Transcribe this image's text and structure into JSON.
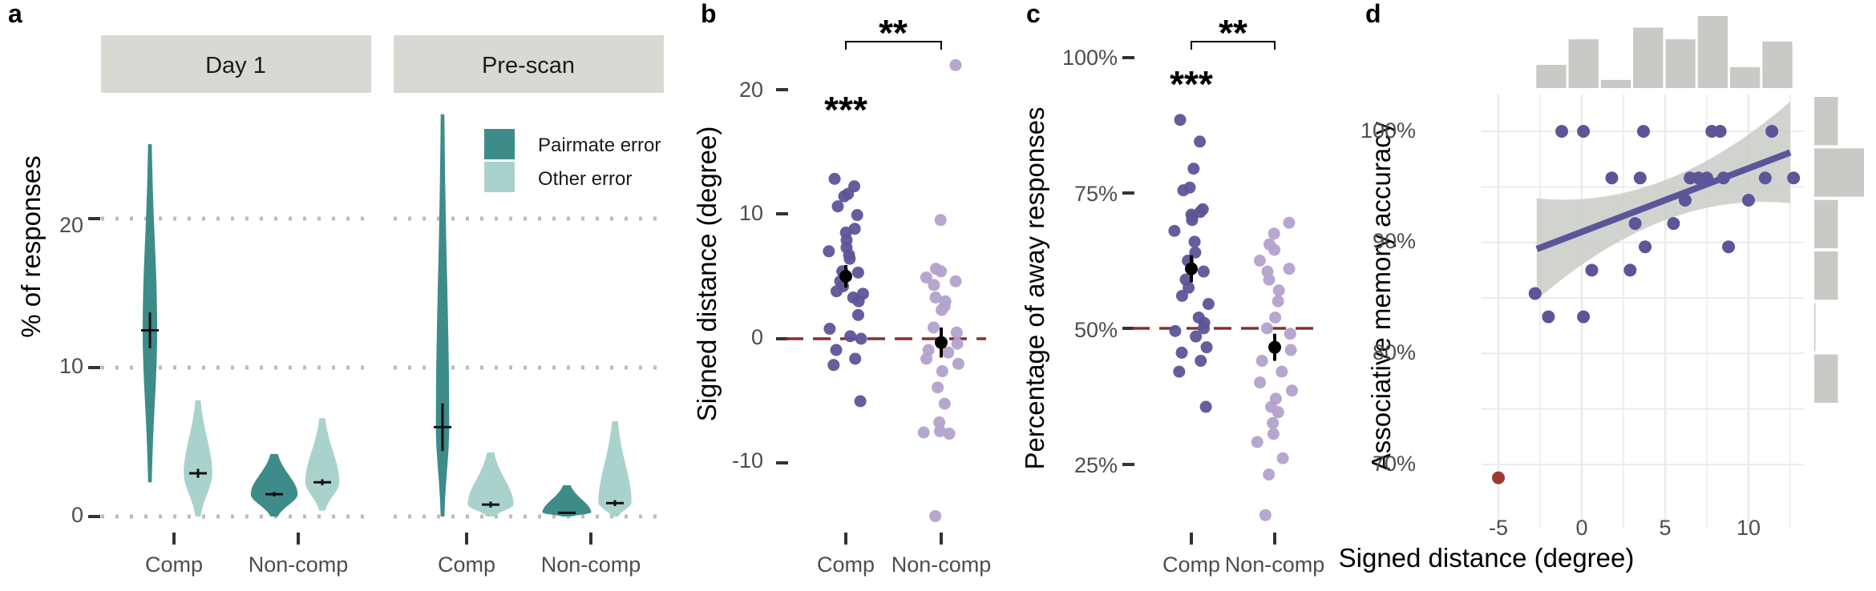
{
  "colors": {
    "pairmate": "#3d8c8a",
    "other": "#a9d2cc",
    "comp_dot": "#5c5599",
    "noncomp_dot": "#b3a2cc",
    "ref_line": "#8a2e2e",
    "strip_bg": "#d9d9d4",
    "fit_band": "#c9ccc6",
    "outlier": "#9c3a36",
    "marginal": "#c9c9c6"
  },
  "chart_data": [
    {
      "panel": "a",
      "type": "violin",
      "ylabel": "% of responses",
      "yticks": [
        "0",
        "10",
        "20"
      ],
      "ylim": [
        0,
        27
      ],
      "grid": "dotted horizontal",
      "legend": {
        "position": "top-right",
        "entries": [
          "Pairmate error",
          "Other error"
        ]
      },
      "facets": [
        {
          "strip": "Day 1",
          "categories": [
            "Comp",
            "Non-comp"
          ],
          "groups": [
            {
              "category": "Comp",
              "series": "Pairmate error",
              "mean": 12.5,
              "se": 1.2,
              "min": 2.3,
              "max": 25
            },
            {
              "category": "Comp",
              "series": "Other error",
              "mean": 2.9,
              "se": 0.3,
              "min": 0,
              "max": 7.8
            },
            {
              "category": "Non-comp",
              "series": "Pairmate error",
              "mean": 1.5,
              "se": 0.15,
              "min": 0,
              "max": 4.2
            },
            {
              "category": "Non-comp",
              "series": "Other error",
              "mean": 2.3,
              "se": 0.2,
              "min": 0.4,
              "max": 6.6
            }
          ]
        },
        {
          "strip": "Pre-scan",
          "categories": [
            "Comp",
            "Non-comp"
          ],
          "groups": [
            {
              "category": "Comp",
              "series": "Pairmate error",
              "mean": 6.0,
              "se": 1.6,
              "min": 0,
              "max": 27
            },
            {
              "category": "Comp",
              "series": "Other error",
              "mean": 0.8,
              "se": 0.2,
              "min": 0,
              "max": 4.3
            },
            {
              "category": "Non-comp",
              "series": "Pairmate error",
              "mean": 0.25,
              "se": 0.07,
              "min": 0,
              "max": 2.1
            },
            {
              "category": "Non-comp",
              "series": "Other error",
              "mean": 0.9,
              "se": 0.2,
              "min": 0,
              "max": 6.4
            }
          ]
        }
      ]
    },
    {
      "panel": "b",
      "type": "strip",
      "ylabel": "Signed distance (degree)",
      "yticks": [
        "-10",
        "0",
        "10",
        "20"
      ],
      "ylim": [
        -15,
        24
      ],
      "categories": [
        "Comp",
        "Non-comp"
      ],
      "reference": 0,
      "significance": {
        "vs_reference": "***",
        "between": "**"
      },
      "groups": [
        {
          "category": "Comp",
          "mean": 5.0,
          "se": 0.9,
          "points": [
            12.8,
            12.2,
            11.6,
            11.4,
            10.6,
            9.9,
            8.8,
            8.5,
            7.9,
            7.3,
            7.0,
            6.7,
            6.4,
            5.4,
            5.3,
            4.6,
            4.2,
            3.8,
            3.6,
            3.3,
            3.0,
            1.9,
            0.8,
            0.2,
            0.0,
            -0.9,
            -1.6,
            -2.1,
            -5.0
          ]
        },
        {
          "category": "Non-comp",
          "mean": -0.3,
          "se": 1.2,
          "points": [
            21.9,
            9.5,
            5.6,
            5.4,
            4.9,
            4.6,
            4.3,
            3.3,
            3.0,
            2.6,
            2.3,
            0.9,
            0.5,
            -0.4,
            -0.9,
            -1.1,
            -1.6,
            -2.0,
            -2.6,
            -3.9,
            -5.2,
            -6.7,
            -7.4,
            -7.5,
            -7.6,
            -14.2
          ]
        }
      ]
    },
    {
      "panel": "c",
      "type": "strip",
      "ylabel": "Percentage of away responses",
      "yticks": [
        "25%",
        "50%",
        "75%",
        "100%"
      ],
      "ylim": [
        0.17,
        1.06
      ],
      "categories": [
        "Comp",
        "Non-comp"
      ],
      "reference": 0.5,
      "significance": {
        "vs_reference": "***",
        "between": "**"
      },
      "groups": [
        {
          "category": "Comp",
          "mean": 0.61,
          "se": 0.025,
          "points": [
            0.885,
            0.845,
            0.795,
            0.76,
            0.755,
            0.72,
            0.715,
            0.71,
            0.705,
            0.7,
            0.68,
            0.66,
            0.64,
            0.625,
            0.605,
            0.59,
            0.575,
            0.56,
            0.545,
            0.52,
            0.51,
            0.5,
            0.495,
            0.485,
            0.465,
            0.455,
            0.44,
            0.42,
            0.355
          ]
        },
        {
          "category": "Non-comp",
          "mean": 0.465,
          "se": 0.025,
          "points": [
            0.695,
            0.675,
            0.655,
            0.645,
            0.625,
            0.61,
            0.605,
            0.59,
            0.57,
            0.55,
            0.52,
            0.5,
            0.49,
            0.46,
            0.44,
            0.42,
            0.4,
            0.385,
            0.37,
            0.355,
            0.345,
            0.325,
            0.305,
            0.29,
            0.26,
            0.23,
            0.155
          ]
        }
      ]
    },
    {
      "panel": "d",
      "type": "scatter",
      "xlabel": "Signed distance (degree)",
      "ylabel": "Associative memory accuracy",
      "xticks": [
        "-5",
        "0",
        "5",
        "10"
      ],
      "yticks": [
        "70%",
        "80%",
        "90%",
        "100%"
      ],
      "xlim": [
        -6.2,
        13.5
      ],
      "ylim": [
        0.675,
        1.035
      ],
      "fit": {
        "x": [
          -2.7,
          12.5
        ],
        "y": [
          0.894,
          0.981
        ]
      },
      "points": [
        {
          "x": -2.8,
          "y": 0.854
        },
        {
          "x": -2.0,
          "y": 0.833
        },
        {
          "x": -1.2,
          "y": 1.0
        },
        {
          "x": 0.1,
          "y": 1.0
        },
        {
          "x": 0.1,
          "y": 0.833
        },
        {
          "x": 0.6,
          "y": 0.875
        },
        {
          "x": 1.8,
          "y": 0.958
        },
        {
          "x": 2.9,
          "y": 0.875
        },
        {
          "x": 3.2,
          "y": 0.917
        },
        {
          "x": 3.5,
          "y": 0.958
        },
        {
          "x": 3.7,
          "y": 1.0
        },
        {
          "x": 3.8,
          "y": 0.896
        },
        {
          "x": 5.5,
          "y": 0.917
        },
        {
          "x": 6.2,
          "y": 0.938
        },
        {
          "x": 6.5,
          "y": 0.958
        },
        {
          "x": 7.0,
          "y": 0.958
        },
        {
          "x": 7.5,
          "y": 0.958
        },
        {
          "x": 7.8,
          "y": 1.0
        },
        {
          "x": 8.3,
          "y": 1.0
        },
        {
          "x": 8.5,
          "y": 0.958
        },
        {
          "x": 8.8,
          "y": 0.896
        },
        {
          "x": 10.0,
          "y": 0.938
        },
        {
          "x": 11.0,
          "y": 0.958
        },
        {
          "x": 11.4,
          "y": 1.0
        },
        {
          "x": 12.7,
          "y": 0.958
        },
        {
          "x": -5.0,
          "y": 0.688,
          "outlier": true
        }
      ],
      "marginal_x": [
        1,
        2.1,
        0.35,
        2.6,
        2.1,
        3.1,
        0.9,
        2.0
      ],
      "marginal_y": [
        1,
        2.1,
        1.0,
        1.0,
        0.05,
        1.0
      ]
    }
  ]
}
